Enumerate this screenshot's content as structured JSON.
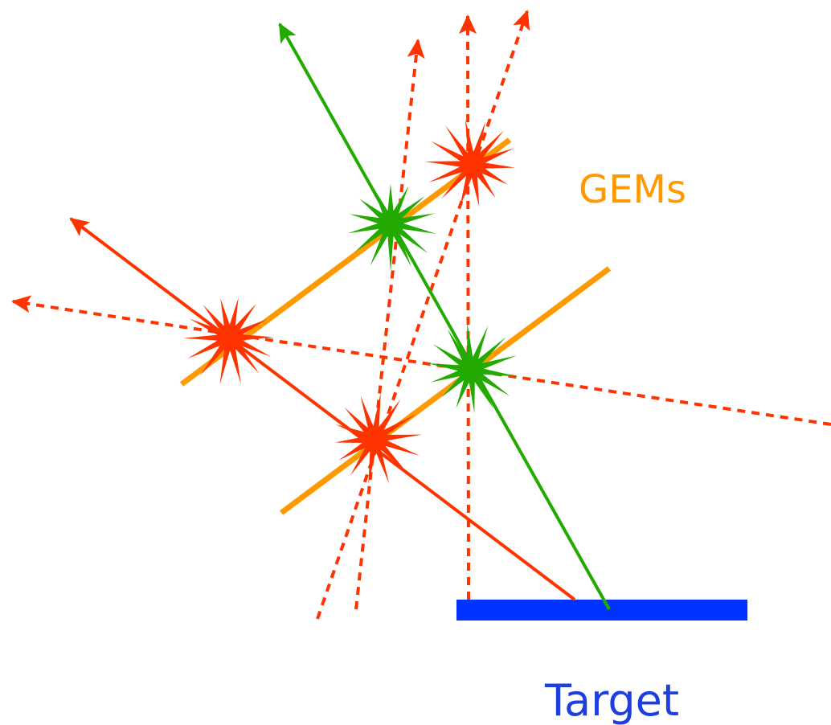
{
  "labels": {
    "gems": "GEMs",
    "target": "Target"
  },
  "colors": {
    "gem": "#FF9900",
    "target": "#0033FF",
    "target_text": "#1E3FE0",
    "green": "#22AA00",
    "red": "#FF3300"
  }
}
